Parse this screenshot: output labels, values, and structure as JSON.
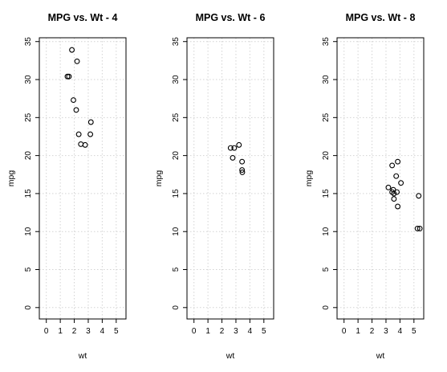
{
  "chart_data": [
    {
      "type": "scatter",
      "title": "MPG vs. Wt - 4",
      "xlabel": "wt",
      "ylabel": "mpg",
      "xlim": [
        -0.5,
        5.7
      ],
      "ylim": [
        -1.5,
        35.5
      ],
      "xticks": [
        0,
        1,
        2,
        3,
        4,
        5
      ],
      "yticks": [
        0,
        5,
        10,
        15,
        20,
        25,
        30,
        35
      ],
      "grid": true,
      "points": [
        {
          "x": 1.83,
          "y": 33.9
        },
        {
          "x": 2.2,
          "y": 32.4
        },
        {
          "x": 1.62,
          "y": 30.4
        },
        {
          "x": 1.51,
          "y": 30.4
        },
        {
          "x": 1.94,
          "y": 27.3
        },
        {
          "x": 2.14,
          "y": 26.0
        },
        {
          "x": 3.19,
          "y": 24.4
        },
        {
          "x": 3.15,
          "y": 22.8
        },
        {
          "x": 2.32,
          "y": 22.8
        },
        {
          "x": 2.47,
          "y": 21.5
        },
        {
          "x": 2.78,
          "y": 21.4
        }
      ]
    },
    {
      "type": "scatter",
      "title": "MPG vs. Wt - 6",
      "xlabel": "wt",
      "ylabel": "mpg",
      "xlim": [
        -0.5,
        5.7
      ],
      "ylim": [
        -1.5,
        35.5
      ],
      "xticks": [
        0,
        1,
        2,
        3,
        4,
        5
      ],
      "yticks": [
        0,
        5,
        10,
        15,
        20,
        25,
        30,
        35
      ],
      "grid": true,
      "points": [
        {
          "x": 3.22,
          "y": 21.4
        },
        {
          "x": 2.62,
          "y": 21.0
        },
        {
          "x": 2.88,
          "y": 21.0
        },
        {
          "x": 2.77,
          "y": 19.7
        },
        {
          "x": 3.44,
          "y": 19.2
        },
        {
          "x": 3.44,
          "y": 18.1
        },
        {
          "x": 3.46,
          "y": 17.8
        }
      ]
    },
    {
      "type": "scatter",
      "title": "MPG vs. Wt - 8",
      "xlabel": "wt",
      "ylabel": "mpg",
      "xlim": [
        -0.5,
        5.7
      ],
      "ylim": [
        -1.5,
        35.5
      ],
      "xticks": [
        0,
        1,
        2,
        3,
        4,
        5
      ],
      "yticks": [
        0,
        5,
        10,
        15,
        20,
        25,
        30,
        35
      ],
      "grid": true,
      "points": [
        {
          "x": 3.84,
          "y": 19.2
        },
        {
          "x": 3.44,
          "y": 18.7
        },
        {
          "x": 3.73,
          "y": 17.3
        },
        {
          "x": 4.07,
          "y": 16.4
        },
        {
          "x": 3.17,
          "y": 15.8
        },
        {
          "x": 3.52,
          "y": 15.5
        },
        {
          "x": 3.44,
          "y": 15.2
        },
        {
          "x": 3.78,
          "y": 15.2
        },
        {
          "x": 3.57,
          "y": 15.0
        },
        {
          "x": 5.34,
          "y": 14.7
        },
        {
          "x": 3.57,
          "y": 14.3
        },
        {
          "x": 3.84,
          "y": 13.3
        },
        {
          "x": 5.25,
          "y": 10.4
        },
        {
          "x": 5.42,
          "y": 10.4
        }
      ]
    }
  ]
}
